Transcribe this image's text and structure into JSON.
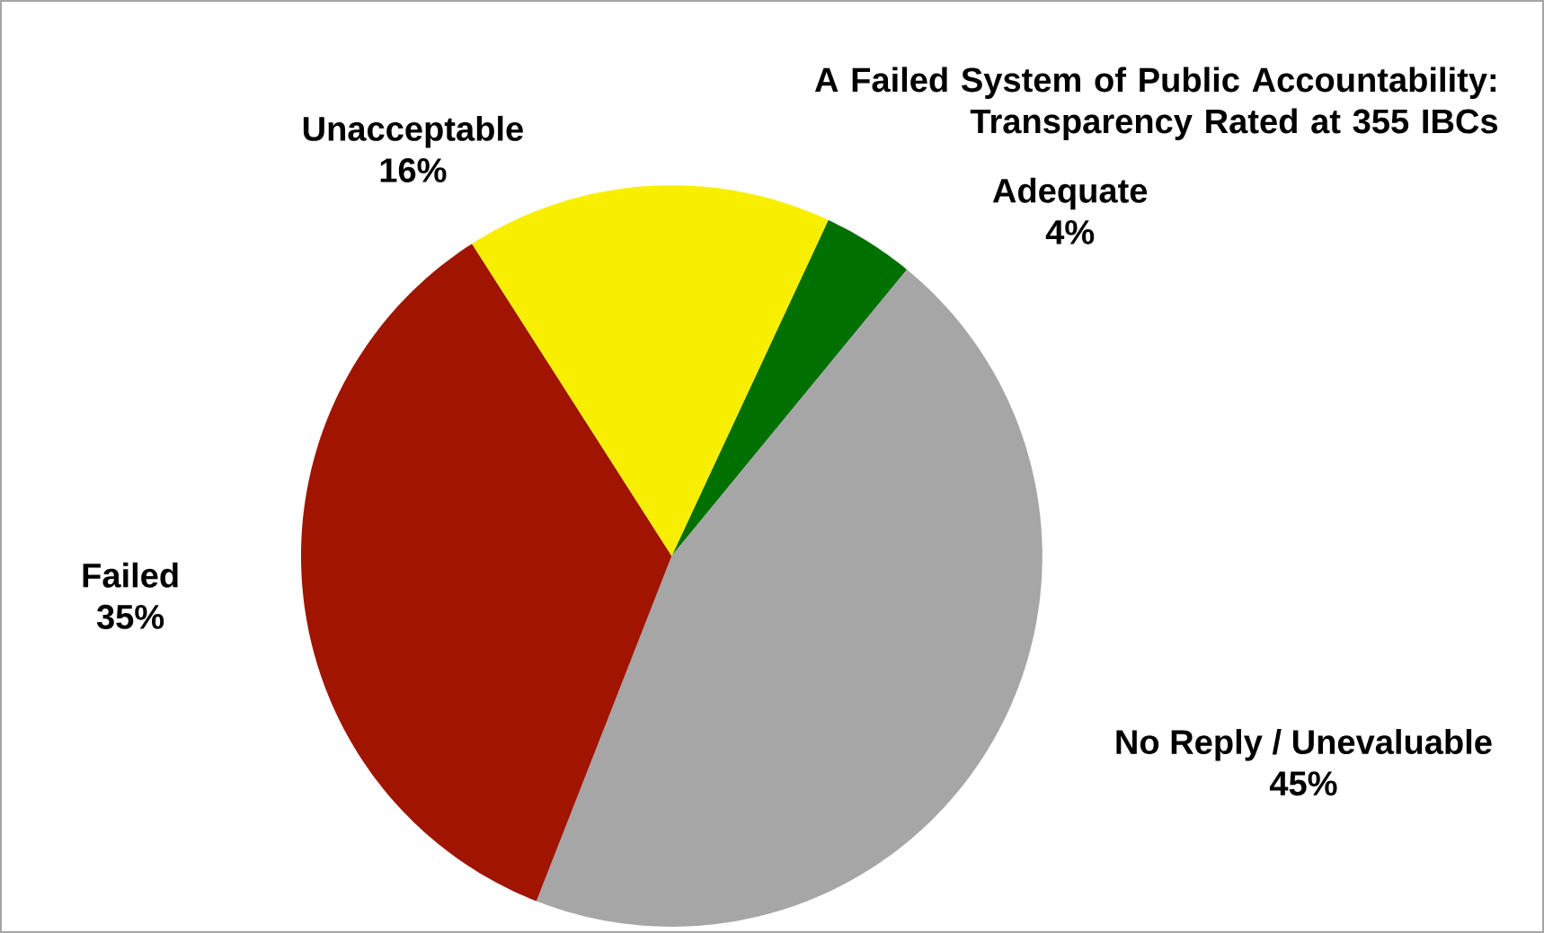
{
  "chart_data": {
    "type": "pie",
    "title": "A Failed System of Public Accountability: Transparency Rated at 355 IBCs",
    "categories": [
      "Adequate",
      "No Reply / Unevaluable",
      "Failed",
      "Unacceptable"
    ],
    "values": [
      4,
      45,
      35,
      16
    ],
    "value_labels": [
      "4%",
      "45%",
      "35%",
      "16%"
    ],
    "colors": [
      "#007000",
      "#a6a6a6",
      "#a01400",
      "#f8ee00"
    ]
  }
}
